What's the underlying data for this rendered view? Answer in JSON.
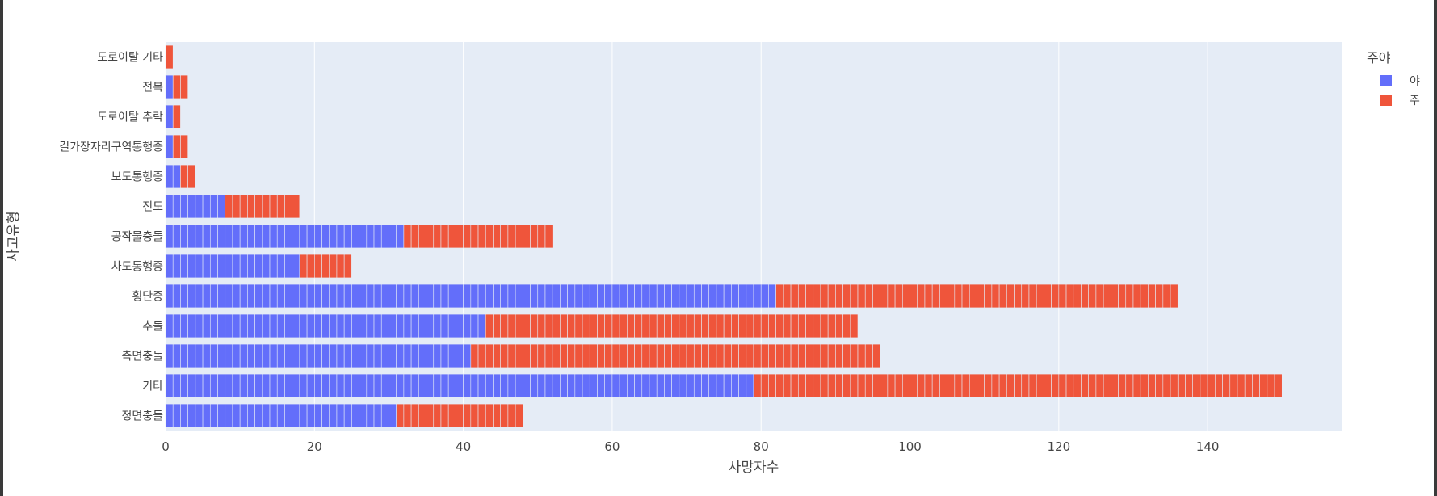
{
  "chart_data": {
    "type": "bar",
    "orientation": "horizontal",
    "barmode": "stack",
    "xlabel": "사망자수",
    "ylabel": "사고유형",
    "xlim": [
      0,
      158
    ],
    "xticks": [
      0,
      20,
      40,
      60,
      80,
      100,
      120,
      140
    ],
    "grid": true,
    "categories": [
      "정면충돌",
      "기타",
      "측면충돌",
      "추돌",
      "횡단중",
      "차도통행중",
      "공작물충돌",
      "전도",
      "보도통행중",
      "길가장자리구역통행중",
      "도로이탈 추락",
      "전복",
      "도로이탈 기타"
    ],
    "series": [
      {
        "name": "야",
        "color": "#636efa",
        "values": [
          31,
          79,
          41,
          43,
          82,
          18,
          32,
          8,
          2,
          1,
          1,
          1,
          0
        ]
      },
      {
        "name": "주",
        "color": "#ef553b",
        "values": [
          17,
          71,
          55,
          50,
          54,
          7,
          20,
          10,
          2,
          2,
          1,
          2,
          1
        ]
      }
    ],
    "legend": {
      "title": "주야",
      "position": "top-right"
    }
  }
}
